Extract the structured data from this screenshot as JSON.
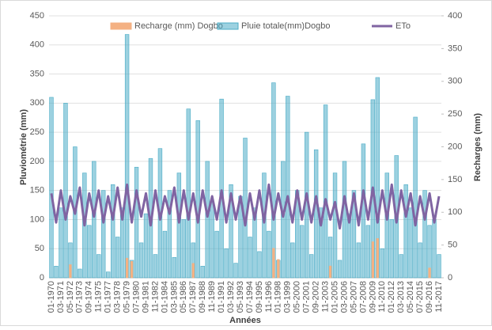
{
  "chart_data": {
    "type": "bar",
    "x_label": "Années",
    "y_label": "Pluviométrie (mm)",
    "y2_label": "Recharges (mm)",
    "ylim": [
      0,
      450
    ],
    "yticks": [
      0,
      50,
      100,
      150,
      200,
      250,
      300,
      350,
      400,
      450
    ],
    "y2lim": [
      0,
      400
    ],
    "y2ticks": [
      0,
      50,
      100,
      150,
      200,
      250,
      300,
      350,
      400
    ],
    "grid": true,
    "legend": "top",
    "categories": [
      "01-1970",
      null,
      "03-1971",
      null,
      "05-1972",
      null,
      "07-1973",
      null,
      "09-1974",
      null,
      "11-1975",
      null,
      "01-1977",
      null,
      "03-1978",
      null,
      "05-1979",
      null,
      "07-1980",
      null,
      "09-1981",
      null,
      "11-1982",
      null,
      "01-1984",
      null,
      "03-1985",
      null,
      "05-1986",
      null,
      "07-1987",
      null,
      "09-1988",
      null,
      "11-1989",
      null,
      "01-1991",
      null,
      "03-1992",
      null,
      "05-1993",
      null,
      "07-1994",
      null,
      "09-1995",
      null,
      "11-1996",
      null,
      "01-1998",
      null,
      "03-1999",
      null,
      "05-2000",
      null,
      "07-2001",
      null,
      "09-2002",
      null,
      "11-2003",
      null,
      "01-2005",
      null,
      "03-2006",
      null,
      "05-2007",
      null,
      "07-2008",
      null,
      "09-2009",
      null,
      "11-2010",
      null,
      "01-2012",
      null,
      "03-2013",
      null,
      "05-2014",
      null,
      "07-2015",
      null,
      "09-2016",
      null,
      "11-2017"
    ],
    "series": [
      {
        "name": "Recharge (mm) Dogbo",
        "color": "#f4b183",
        "axis": "y2",
        "kind": "bar",
        "values": [
          0,
          0,
          0,
          0,
          20,
          0,
          0,
          0,
          0,
          0,
          0,
          0,
          0,
          0,
          0,
          0,
          30,
          25,
          0,
          0,
          0,
          0,
          0,
          0,
          0,
          0,
          0,
          0,
          0,
          0,
          22,
          0,
          0,
          0,
          0,
          0,
          0,
          0,
          0,
          0,
          0,
          0,
          0,
          0,
          0,
          0,
          0,
          45,
          28,
          0,
          0,
          0,
          0,
          0,
          0,
          0,
          0,
          0,
          0,
          18,
          0,
          0,
          0,
          0,
          0,
          0,
          0,
          0,
          55,
          60,
          0,
          0,
          0,
          0,
          0,
          0,
          0,
          0,
          0,
          0,
          15,
          0,
          0
        ]
      },
      {
        "name": "Pluie totale(mm)Dogbo",
        "color": "#4bacc6",
        "kind": "bar",
        "values": [
          310,
          20,
          120,
          300,
          60,
          225,
          15,
          180,
          90,
          200,
          40,
          150,
          10,
          160,
          70,
          120,
          418,
          30,
          190,
          60,
          110,
          205,
          40,
          222,
          80,
          150,
          35,
          180,
          100,
          290,
          60,
          270,
          20,
          200,
          130,
          80,
          307,
          50,
          160,
          25,
          140,
          240,
          70,
          120,
          45,
          180,
          80,
          335,
          30,
          200,
          312,
          60,
          150,
          90,
          250,
          40,
          220,
          120,
          297,
          70,
          180,
          30,
          200,
          110,
          150,
          60,
          230,
          90,
          306,
          344,
          50,
          180,
          100,
          210,
          40,
          160,
          120,
          276,
          60,
          150,
          90,
          100,
          40
        ]
      },
      {
        "name": "ETo",
        "color": "#8064a2",
        "kind": "line",
        "values": [
          145,
          95,
          150,
          100,
          140,
          110,
          155,
          90,
          145,
          105,
          150,
          95,
          140,
          100,
          155,
          100,
          160,
          95,
          150,
          105,
          145,
          90,
          150,
          100,
          140,
          110,
          155,
          95,
          150,
          100,
          145,
          95,
          150,
          105,
          140,
          100,
          150,
          95,
          145,
          100,
          140,
          90,
          145,
          100,
          150,
          95,
          160,
          100,
          145,
          105,
          140,
          95,
          150,
          100,
          145,
          95,
          140,
          90,
          135,
          100,
          130,
          85,
          140,
          95,
          145,
          90,
          150,
          100,
          155,
          95,
          150,
          100,
          160,
          95,
          150,
          105,
          145,
          90,
          140,
          100,
          145,
          95,
          140
        ]
      }
    ]
  }
}
